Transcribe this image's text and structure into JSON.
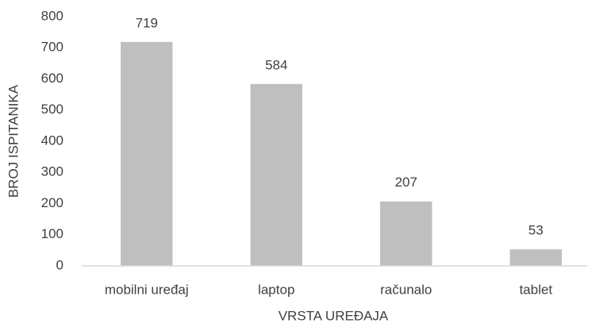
{
  "chart_data": {
    "type": "bar",
    "categories": [
      "mobilni uređaj",
      "laptop",
      "računalo",
      "tablet"
    ],
    "values": [
      719,
      584,
      207,
      53
    ],
    "color": "#bfbfbf",
    "xlabel": "VRSTA UREĐAJA",
    "ylabel": "BROJ ISPITANIKA",
    "ylim": [
      0,
      800
    ],
    "yticks": [
      0,
      100,
      200,
      300,
      400,
      500,
      600,
      700,
      800
    ],
    "grid": false
  }
}
